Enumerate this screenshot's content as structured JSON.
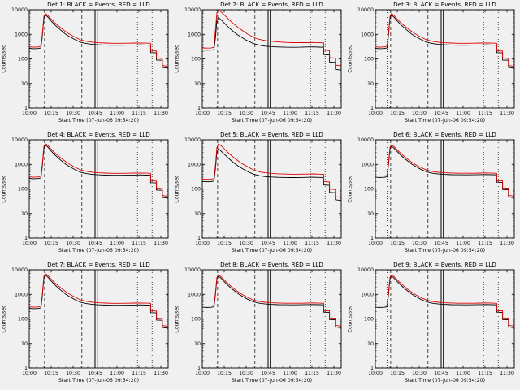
{
  "chart_config": {
    "type": "line",
    "grid_layout": "3x3",
    "xlabel": "Start Time (07-Jun-06 09:54:20)",
    "ylabel": "Counts/sec",
    "legend_note": "BLACK = Events, RED = LLD",
    "yscale": "log",
    "ylim": [
      1,
      10000
    ],
    "xlim": [
      0,
      95
    ],
    "x_units": "minutes after 10:00",
    "ytick_labels": [
      "1",
      "10",
      "100",
      "1000",
      "10000"
    ],
    "xticks": [
      {
        "pos": 0,
        "label": "10:00"
      },
      {
        "pos": 15,
        "label": "10:15"
      },
      {
        "pos": 30,
        "label": "10:30"
      },
      {
        "pos": 45,
        "label": "10:45"
      },
      {
        "pos": 60,
        "label": "11:00"
      },
      {
        "pos": 75,
        "label": "11:15"
      },
      {
        "pos": 90,
        "label": "11:30"
      }
    ],
    "vlines": [
      {
        "x": 8,
        "style": "dotted"
      },
      {
        "x": 10.5,
        "style": "dashed"
      },
      {
        "x": 36,
        "style": "dashed"
      },
      {
        "x": 45,
        "style": "solid"
      },
      {
        "x": 46.5,
        "style": "solid"
      },
      {
        "x": 74,
        "style": "dotted"
      },
      {
        "x": 84,
        "style": "dotted"
      }
    ],
    "colors": {
      "events": "#000000",
      "lld": "#dd0000"
    },
    "sample_minutes": [
      0,
      3,
      6,
      8,
      9,
      10,
      11,
      12,
      13,
      15,
      17,
      19,
      22,
      25,
      28,
      31,
      35,
      39,
      43,
      47,
      52,
      57,
      62,
      67,
      72,
      76,
      80,
      83,
      83,
      87,
      87,
      91,
      91,
      95
    ]
  },
  "chart_data": [
    {
      "type": "line",
      "det": 1,
      "title": "Det 1: BLACK = Events, RED = LLD",
      "series": [
        {
          "name": "Events",
          "color": "#000000",
          "y": [
            270,
            260,
            265,
            280,
            900,
            4500,
            6000,
            5500,
            4800,
            3500,
            2600,
            2000,
            1400,
            1000,
            780,
            620,
            480,
            420,
            390,
            375,
            365,
            360,
            358,
            362,
            368,
            372,
            365,
            360,
            180,
            175,
            90,
            88,
            45,
            42
          ]
        },
        {
          "name": "LLD",
          "color": "#dd0000",
          "y": [
            310,
            300,
            305,
            330,
            1100,
            5300,
            6900,
            6400,
            5600,
            4200,
            3150,
            2450,
            1750,
            1280,
            980,
            780,
            600,
            520,
            480,
            455,
            440,
            432,
            430,
            434,
            440,
            446,
            438,
            430,
            215,
            210,
            108,
            104,
            54,
            50
          ]
        }
      ]
    },
    {
      "type": "line",
      "det": 2,
      "title": "Det 2: BLACK = Events, RED = LLD",
      "series": [
        {
          "name": "Events",
          "color": "#000000",
          "y": [
            230,
            225,
            228,
            240,
            700,
            3500,
            4700,
            4300,
            3800,
            2900,
            2200,
            1700,
            1200,
            880,
            680,
            540,
            420,
            360,
            330,
            315,
            305,
            300,
            298,
            300,
            305,
            308,
            302,
            298,
            150,
            145,
            75,
            72,
            38,
            35
          ]
        },
        {
          "name": "LLD",
          "color": "#dd0000",
          "y": [
            280,
            275,
            278,
            300,
            1500,
            7500,
            9500,
            9000,
            8000,
            6200,
            4700,
            3600,
            2500,
            1800,
            1350,
            1020,
            750,
            620,
            560,
            520,
            490,
            470,
            460,
            458,
            460,
            465,
            455,
            448,
            225,
            218,
            112,
            108,
            56,
            52
          ]
        }
      ]
    },
    {
      "type": "line",
      "det": 3,
      "title": "Det 3: BLACK = Events, RED = LLD",
      "series": [
        {
          "name": "Events",
          "color": "#000000",
          "y": [
            270,
            260,
            265,
            280,
            900,
            4500,
            6000,
            5500,
            4800,
            3500,
            2600,
            2000,
            1400,
            1000,
            780,
            620,
            480,
            420,
            390,
            375,
            365,
            360,
            358,
            362,
            368,
            372,
            365,
            360,
            180,
            175,
            90,
            88,
            45,
            42
          ]
        },
        {
          "name": "LLD",
          "color": "#dd0000",
          "y": [
            310,
            300,
            305,
            330,
            1100,
            5300,
            6900,
            6400,
            5600,
            4200,
            3150,
            2450,
            1750,
            1280,
            980,
            780,
            600,
            520,
            480,
            455,
            440,
            432,
            430,
            434,
            440,
            446,
            438,
            430,
            215,
            210,
            108,
            104,
            54,
            50
          ]
        }
      ]
    },
    {
      "type": "line",
      "det": 4,
      "title": "Det 4: BLACK = Events, RED = LLD",
      "series": [
        {
          "name": "Events",
          "color": "#000000",
          "y": [
            270,
            260,
            265,
            280,
            900,
            4500,
            6000,
            5500,
            4800,
            3500,
            2600,
            2000,
            1400,
            1000,
            780,
            620,
            480,
            420,
            390,
            375,
            365,
            360,
            358,
            362,
            368,
            372,
            365,
            360,
            180,
            175,
            90,
            88,
            45,
            42
          ]
        },
        {
          "name": "LLD",
          "color": "#dd0000",
          "y": [
            310,
            300,
            305,
            330,
            1100,
            5300,
            6900,
            6400,
            5600,
            4200,
            3150,
            2450,
            1750,
            1280,
            980,
            780,
            600,
            520,
            480,
            455,
            440,
            432,
            430,
            434,
            440,
            446,
            438,
            430,
            215,
            210,
            108,
            104,
            54,
            50
          ]
        }
      ]
    },
    {
      "type": "line",
      "det": 5,
      "title": "Det 5: BLACK = Events, RED = LLD",
      "series": [
        {
          "name": "Events",
          "color": "#000000",
          "y": [
            200,
            195,
            198,
            210,
            650,
            3200,
            4200,
            3900,
            3400,
            2600,
            2000,
            1550,
            1100,
            820,
            640,
            510,
            400,
            345,
            318,
            305,
            296,
            292,
            290,
            292,
            296,
            300,
            294,
            290,
            145,
            140,
            72,
            70,
            36,
            34
          ]
        },
        {
          "name": "LLD",
          "color": "#dd0000",
          "y": [
            250,
            245,
            248,
            265,
            900,
            4800,
            6800,
            6300,
            5600,
            4300,
            3300,
            2550,
            1800,
            1320,
            1000,
            790,
            600,
            500,
            455,
            430,
            412,
            402,
            398,
            400,
            404,
            408,
            400,
            394,
            198,
            192,
            98,
            95,
            48,
            45
          ]
        }
      ]
    },
    {
      "type": "line",
      "det": 6,
      "title": "Det 6: BLACK = Events, RED = LLD",
      "series": [
        {
          "name": "Events",
          "color": "#000000",
          "y": [
            300,
            292,
            296,
            310,
            950,
            4200,
            5400,
            5000,
            4400,
            3300,
            2500,
            1950,
            1380,
            1010,
            790,
            630,
            495,
            435,
            405,
            390,
            380,
            375,
            373,
            376,
            382,
            386,
            378,
            372,
            188,
            182,
            94,
            92,
            47,
            44
          ]
        },
        {
          "name": "LLD",
          "color": "#dd0000",
          "y": [
            340,
            332,
            336,
            355,
            1150,
            4900,
            6200,
            5800,
            5100,
            3900,
            2950,
            2300,
            1640,
            1210,
            940,
            750,
            585,
            510,
            475,
            455,
            443,
            436,
            433,
            436,
            442,
            447,
            438,
            432,
            218,
            212,
            110,
            107,
            55,
            51
          ]
        }
      ]
    },
    {
      "type": "line",
      "det": 7,
      "title": "Det 7: BLACK = Events, RED = LLD",
      "series": [
        {
          "name": "Events",
          "color": "#000000",
          "y": [
            270,
            260,
            265,
            280,
            900,
            4500,
            6000,
            5500,
            4800,
            3500,
            2600,
            2000,
            1400,
            1000,
            780,
            620,
            480,
            420,
            390,
            375,
            365,
            360,
            358,
            362,
            368,
            372,
            365,
            360,
            180,
            175,
            90,
            88,
            45,
            42
          ]
        },
        {
          "name": "LLD",
          "color": "#dd0000",
          "y": [
            310,
            300,
            305,
            330,
            1100,
            5300,
            6900,
            6400,
            5600,
            4200,
            3150,
            2450,
            1750,
            1280,
            980,
            780,
            600,
            520,
            480,
            455,
            440,
            432,
            430,
            434,
            440,
            446,
            438,
            430,
            215,
            210,
            108,
            104,
            54,
            50
          ]
        }
      ]
    },
    {
      "type": "line",
      "det": 8,
      "title": "Det 8: BLACK = Events, RED = LLD",
      "series": [
        {
          "name": "Events",
          "color": "#000000",
          "y": [
            300,
            292,
            296,
            310,
            950,
            4200,
            5400,
            5000,
            4400,
            3300,
            2500,
            1950,
            1380,
            1010,
            790,
            630,
            495,
            435,
            405,
            390,
            380,
            375,
            373,
            376,
            382,
            386,
            378,
            372,
            188,
            182,
            94,
            92,
            47,
            44
          ]
        },
        {
          "name": "LLD",
          "color": "#dd0000",
          "y": [
            340,
            332,
            336,
            355,
            1150,
            4900,
            6200,
            5800,
            5100,
            3900,
            2950,
            2300,
            1640,
            1210,
            940,
            750,
            585,
            510,
            475,
            455,
            443,
            436,
            433,
            436,
            442,
            447,
            438,
            432,
            218,
            212,
            110,
            107,
            55,
            51
          ]
        }
      ]
    },
    {
      "type": "line",
      "det": 9,
      "title": "Det 9: BLACK = Events, RED = LLD",
      "series": [
        {
          "name": "Events",
          "color": "#000000",
          "y": [
            300,
            292,
            296,
            310,
            950,
            4200,
            5400,
            5000,
            4400,
            3300,
            2500,
            1950,
            1380,
            1010,
            790,
            630,
            495,
            435,
            405,
            390,
            380,
            375,
            373,
            376,
            382,
            386,
            378,
            372,
            188,
            182,
            94,
            92,
            47,
            44
          ]
        },
        {
          "name": "LLD",
          "color": "#dd0000",
          "y": [
            340,
            332,
            336,
            355,
            1150,
            4900,
            6200,
            5800,
            5100,
            3900,
            2950,
            2300,
            1640,
            1210,
            940,
            750,
            585,
            510,
            475,
            455,
            443,
            436,
            433,
            436,
            442,
            447,
            438,
            432,
            218,
            212,
            110,
            107,
            55,
            51
          ]
        }
      ]
    }
  ]
}
